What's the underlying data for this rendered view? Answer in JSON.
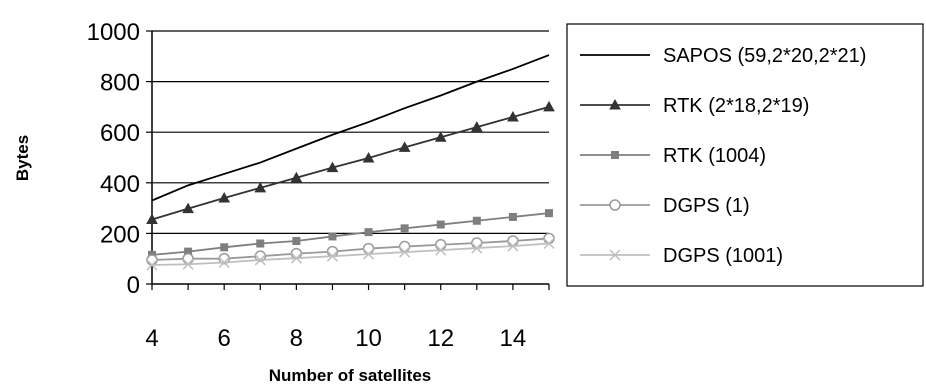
{
  "chart_data": {
    "type": "line",
    "xlabel": "Number of satellites",
    "ylabel": "Bytes",
    "xlim": [
      4,
      15
    ],
    "ylim": [
      0,
      1000
    ],
    "x": [
      4,
      5,
      6,
      7,
      8,
      9,
      10,
      11,
      12,
      13,
      14,
      15
    ],
    "x_ticks": [
      4,
      6,
      8,
      10,
      12,
      14
    ],
    "y_ticks": [
      0,
      200,
      400,
      600,
      800,
      1000
    ],
    "grid": "horizontal",
    "legend_position": "right",
    "series": [
      {
        "name": "SAPOS (59,2*20,2*21)",
        "color": "#000000",
        "marker": "none",
        "values": [
          330,
          390,
          435,
          480,
          535,
          590,
          640,
          695,
          745,
          800,
          850,
          905
        ]
      },
      {
        "name": "RTK (2*18,2*19)",
        "color": "#333333",
        "marker": "triangle",
        "values": [
          255,
          298,
          340,
          380,
          420,
          460,
          498,
          540,
          580,
          620,
          660,
          700
        ]
      },
      {
        "name": "RTK (1004)",
        "color": "#7f7f7f",
        "marker": "square",
        "values": [
          115,
          128,
          145,
          160,
          170,
          188,
          205,
          220,
          235,
          250,
          265,
          280
        ]
      },
      {
        "name": "DGPS (1)",
        "color": "#999999",
        "marker": "circle",
        "values": [
          95,
          100,
          100,
          110,
          120,
          128,
          140,
          148,
          155,
          162,
          170,
          180
        ]
      },
      {
        "name": "DGPS (1001)",
        "color": "#bfbfbf",
        "marker": "x",
        "values": [
          75,
          78,
          85,
          95,
          102,
          110,
          118,
          126,
          134,
          142,
          150,
          160
        ]
      }
    ]
  }
}
